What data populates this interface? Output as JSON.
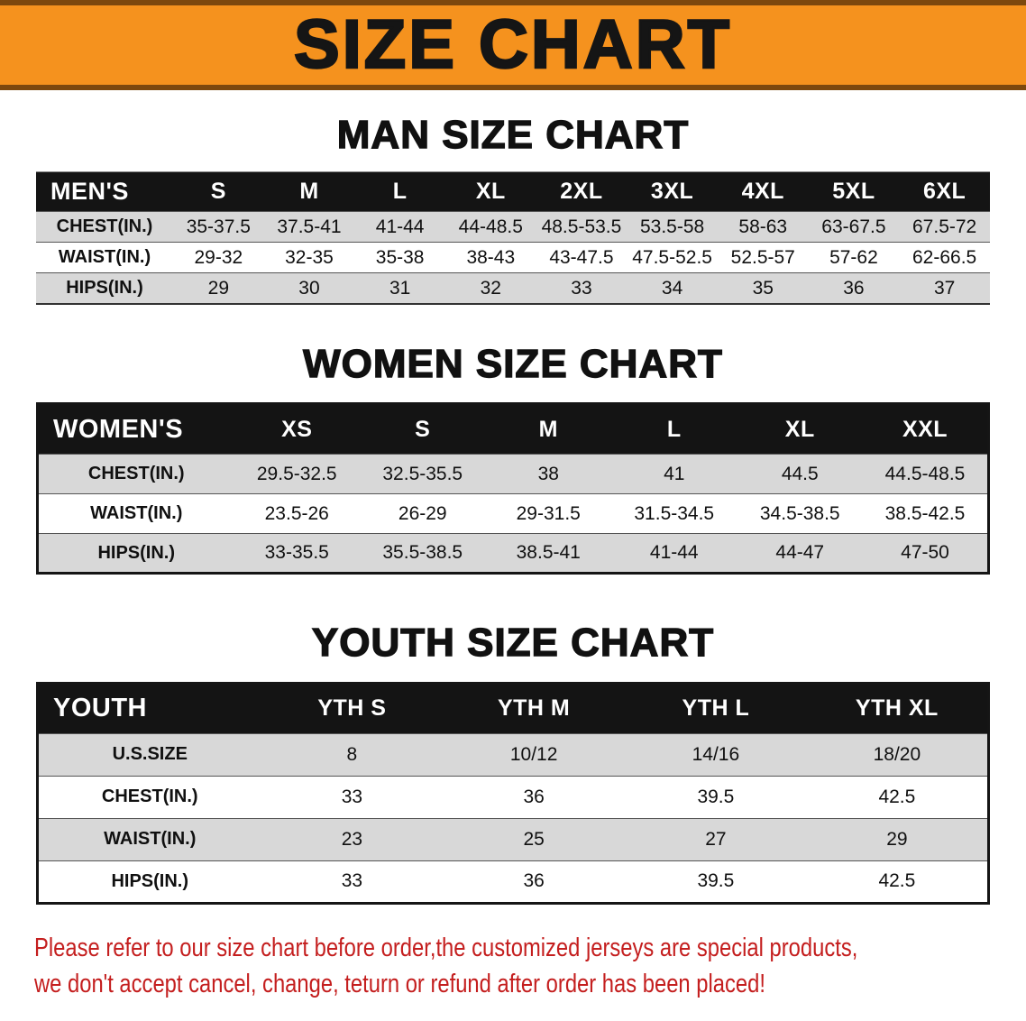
{
  "banner": {
    "title": "SIZE CHART"
  },
  "colors": {
    "banner_bg": "#f5921e",
    "banner_border": "#7c480e",
    "header_bg": "#141414",
    "row_alt": "#d8d8d8",
    "note_red": "#c41e1e"
  },
  "men": {
    "heading": "MAN SIZE CHART",
    "table": {
      "header": [
        "MEN'S",
        "S",
        "M",
        "L",
        "XL",
        "2XL",
        "3XL",
        "4XL",
        "5XL",
        "6XL"
      ],
      "rows": [
        [
          "CHEST(IN.)",
          "35-37.5",
          "37.5-41",
          "41-44",
          "44-48.5",
          "48.5-53.5",
          "53.5-58",
          "58-63",
          "63-67.5",
          "67.5-72"
        ],
        [
          "WAIST(IN.)",
          "29-32",
          "32-35",
          "35-38",
          "38-43",
          "43-47.5",
          "47.5-52.5",
          "52.5-57",
          "57-62",
          "62-66.5"
        ],
        [
          "HIPS(IN.)",
          "29",
          "30",
          "31",
          "32",
          "33",
          "34",
          "35",
          "36",
          "37"
        ]
      ]
    }
  },
  "women": {
    "heading": "WOMEN SIZE CHART",
    "table": {
      "header": [
        "WOMEN'S",
        "XS",
        "S",
        "M",
        "L",
        "XL",
        "XXL"
      ],
      "rows": [
        [
          "CHEST(IN.)",
          "29.5-32.5",
          "32.5-35.5",
          "38",
          "41",
          "44.5",
          "44.5-48.5"
        ],
        [
          "WAIST(IN.)",
          "23.5-26",
          "26-29",
          "29-31.5",
          "31.5-34.5",
          "34.5-38.5",
          "38.5-42.5"
        ],
        [
          "HIPS(IN.)",
          "33-35.5",
          "35.5-38.5",
          "38.5-41",
          "41-44",
          "44-47",
          "47-50"
        ]
      ]
    }
  },
  "youth": {
    "heading": "YOUTH SIZE CHART",
    "table": {
      "header": [
        "YOUTH",
        "YTH S",
        "YTH M",
        "YTH L",
        "YTH XL"
      ],
      "rows": [
        [
          "U.S.SIZE",
          "8",
          "10/12",
          "14/16",
          "18/20"
        ],
        [
          "CHEST(IN.)",
          "33",
          "36",
          "39.5",
          "42.5"
        ],
        [
          "WAIST(IN.)",
          "23",
          "25",
          "27",
          "29"
        ],
        [
          "HIPS(IN.)",
          "33",
          "36",
          "39.5",
          "42.5"
        ]
      ]
    }
  },
  "note": {
    "line1": "Please refer to our size chart before order,the customized jerseys are special products,",
    "line2": "we don't accept cancel, change, teturn or refund after order has been placed!"
  }
}
